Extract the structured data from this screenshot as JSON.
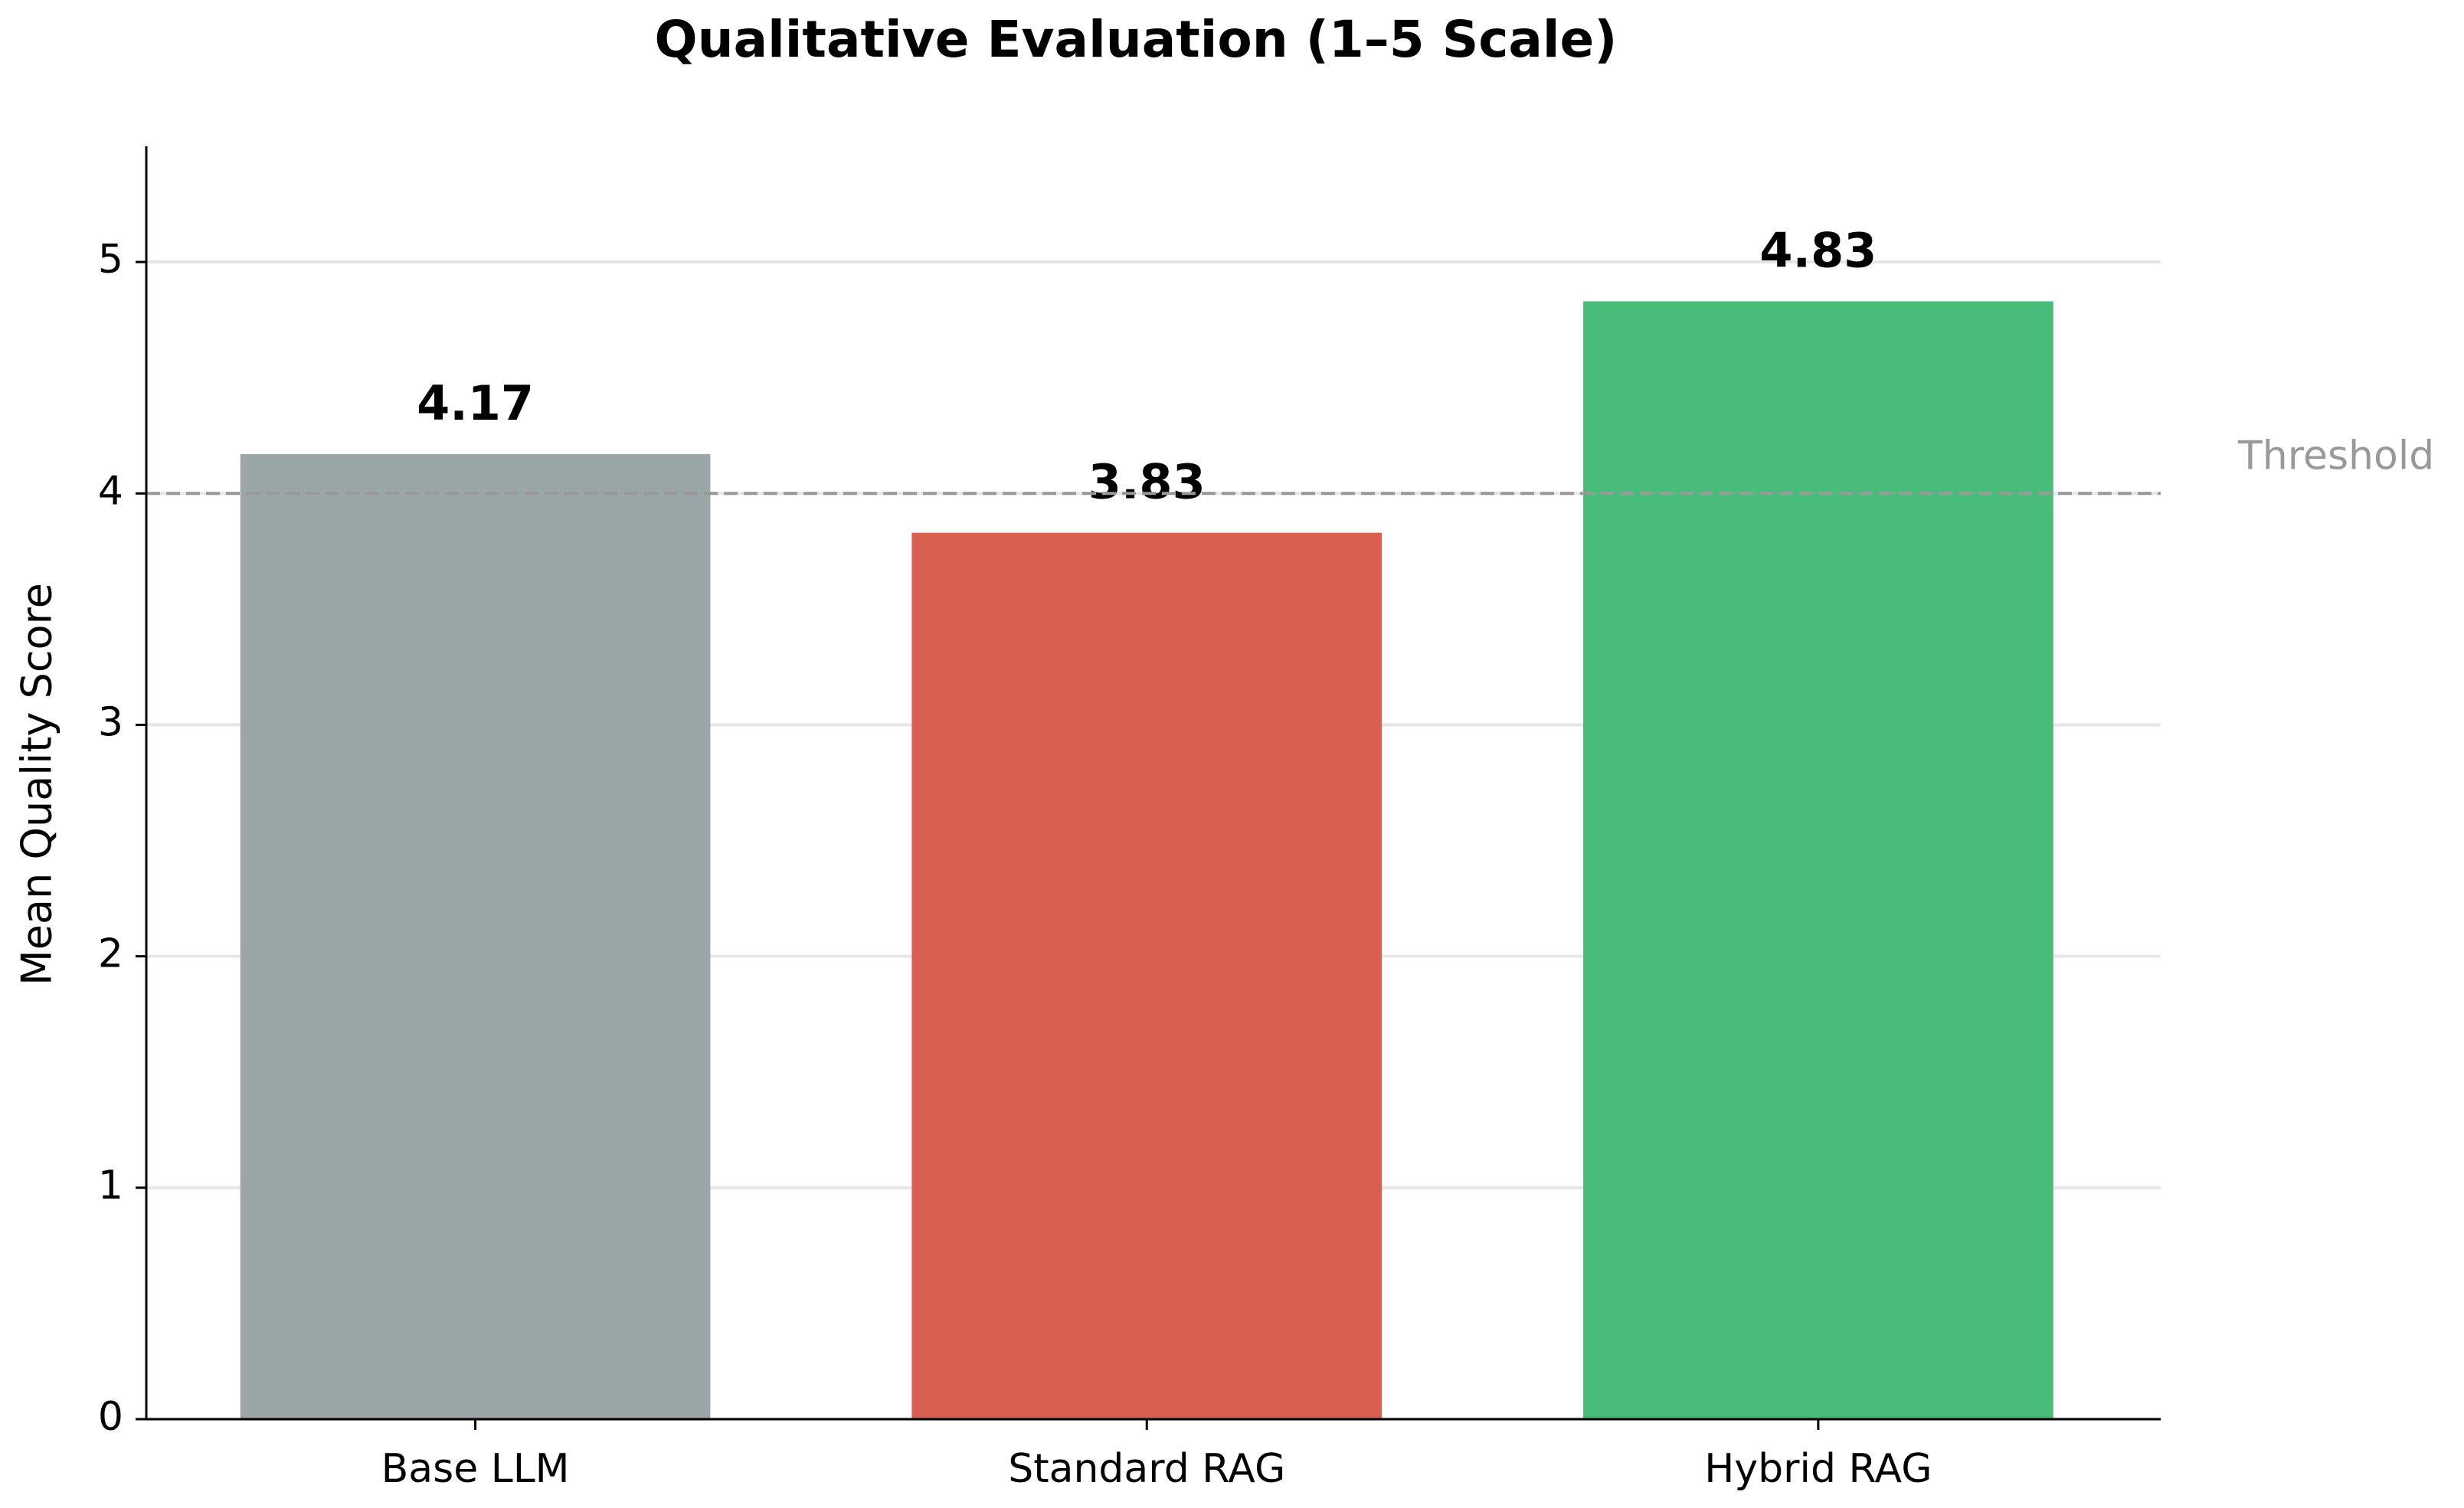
{
  "chart_data": {
    "type": "bar",
    "title": "Qualitative Evaluation (1–5 Scale)",
    "y_label": "Mean Quality Score",
    "categories": [
      "Base LLM",
      "Standard RAG",
      "Hybrid RAG"
    ],
    "values": [
      4.17,
      3.83,
      4.83
    ],
    "colors": [
      "#9aa6a7",
      "#d95f51",
      "#4abc7a"
    ],
    "ylim": [
      0,
      5.5
    ],
    "yticks": [
      0,
      1,
      2,
      3,
      4,
      5
    ],
    "grid": true,
    "threshold": {
      "value": 4,
      "label": "Threshold",
      "color": "#999999"
    }
  }
}
